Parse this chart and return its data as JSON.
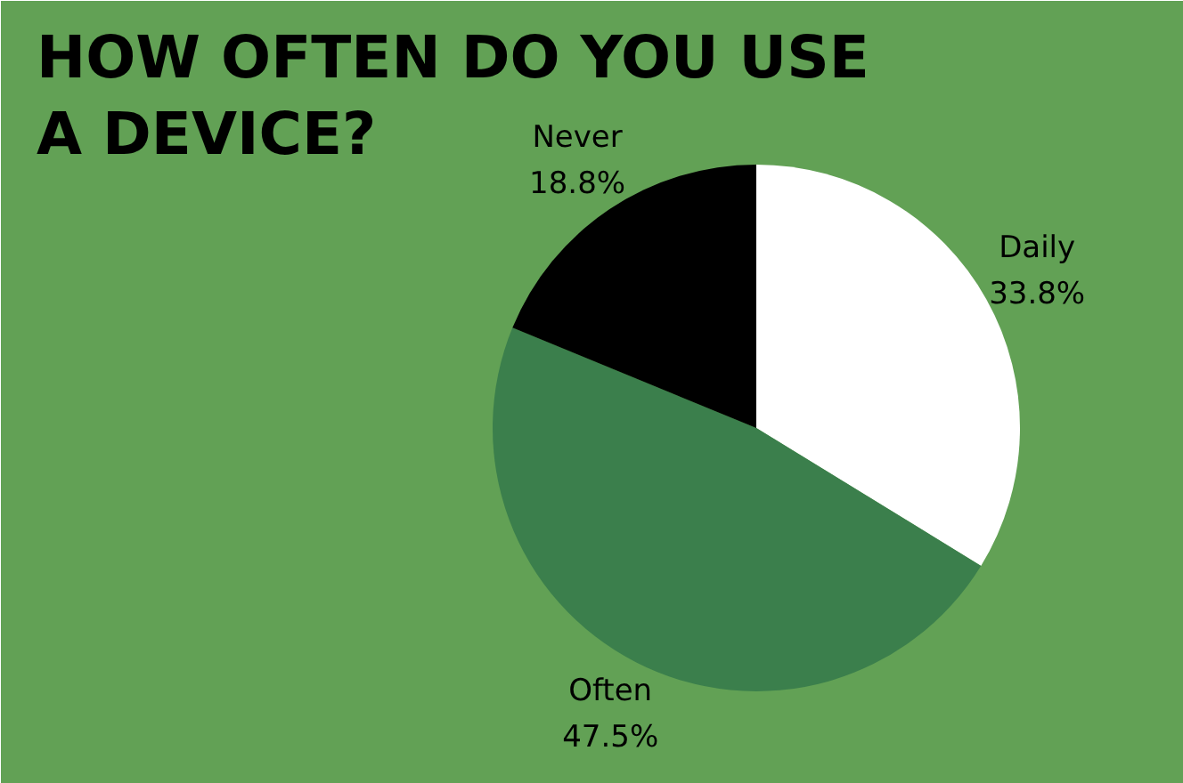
{
  "chart_data": {
    "type": "pie",
    "title": "HOW OFTEN DO YOU USE A DEVICE?",
    "categories": [
      "Daily",
      "Often",
      "Never"
    ],
    "values": [
      33.8,
      47.5,
      18.8
    ],
    "colors": [
      "#ffffff",
      "#3b7f4c",
      "#000000"
    ],
    "value_labels": [
      "33.8%",
      "47.5%",
      "18.8%"
    ]
  }
}
